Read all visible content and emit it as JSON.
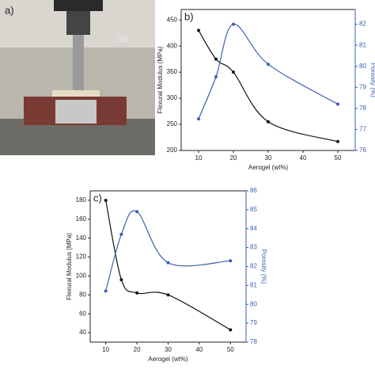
{
  "photo_label": "a)",
  "chart_data": [
    {
      "type": "line",
      "panel_label": "b)",
      "x_label": "Aerogel (wt%)",
      "y_label": "Flexural Modulus (MPa)",
      "y2_label": "Porosity (%)",
      "x": [
        10,
        15,
        20,
        30,
        50
      ],
      "xlim": [
        5,
        55
      ],
      "xticks": [
        10,
        20,
        30,
        40,
        50
      ],
      "ylim": [
        200,
        470
      ],
      "yticks": [
        200,
        250,
        300,
        350,
        400,
        450
      ],
      "y2lim": [
        76,
        82.7
      ],
      "y2ticks": [
        76,
        77,
        78,
        79,
        80,
        81,
        82
      ],
      "series": [
        {
          "color": "#111111",
          "values": [
            430,
            375,
            350,
            255,
            217
          ]
        },
        {
          "color": "#3a5fb0",
          "axis": "y2",
          "values": [
            77.5,
            79.5,
            82,
            80.1,
            78.2
          ]
        }
      ]
    },
    {
      "type": "line",
      "panel_label": "c)",
      "x_label": "Aerogel (wt%)",
      "y_label": "Flexural Modulus (MPa)",
      "y2_label": "Porosity (%)",
      "x": [
        10,
        15,
        20,
        30,
        50
      ],
      "xlim": [
        5,
        55
      ],
      "xticks": [
        10,
        20,
        30,
        40,
        50
      ],
      "ylim": [
        30,
        190
      ],
      "yticks": [
        40,
        60,
        80,
        100,
        120,
        140,
        160,
        180
      ],
      "y2lim": [
        78,
        86
      ],
      "y2ticks": [
        78,
        79,
        80,
        81,
        82,
        83,
        84,
        85,
        86
      ],
      "series": [
        {
          "color": "#111111",
          "values": [
            180,
            96,
            82,
            80,
            43
          ]
        },
        {
          "color": "#3a5fb0",
          "axis": "y2",
          "values": [
            80.7,
            83.7,
            84.9,
            82.2,
            82.3
          ]
        }
      ]
    }
  ]
}
